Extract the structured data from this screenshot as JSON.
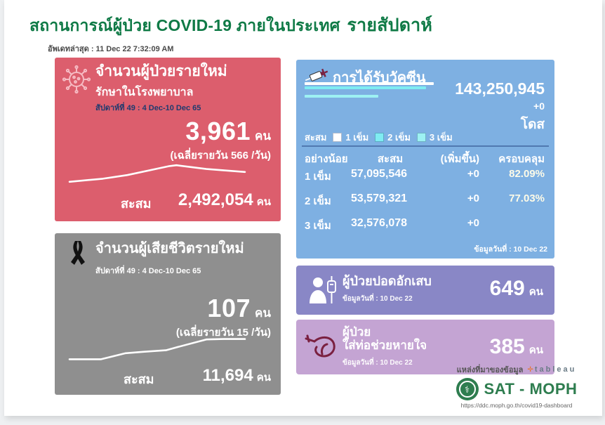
{
  "page": {
    "title": "สถานการณ์ผู้ป่วย COVID-19 ภายในประเทศ",
    "title_suffix": "รายสัปดาห์",
    "last_update": "อัพเดทล่าสุด : 11 Dec 22 7:32:09 AM"
  },
  "colors": {
    "title_green": "#0f7a46",
    "red_card": "#dc5e6d",
    "gray_card": "#8f8f8f",
    "blue_card": "#7eb0e2",
    "purple_card": "#8987c6",
    "violet_card": "#c4a4d3",
    "cyan_bar": "#7fecf2",
    "white_bar": "#ffffff",
    "navy_text": "#1f3a6e",
    "moph_green": "#2e7d4f"
  },
  "new_cases": {
    "title": "จำนวนผู้ป่วยรายใหม่",
    "subtitle": "รักษาในโรงพยาบาล",
    "week": "สัปดาห์ที่ 49 : 4 Dec-10 Dec 65",
    "value": "3,961",
    "unit": "คน",
    "daily_avg": "(เฉลี่ยรายวัน 566 /วัน)",
    "cumulative_label": "สะสม",
    "cumulative_value": "2,492,054",
    "cumulative_unit": "คน"
  },
  "new_deaths": {
    "title": "จำนวนผู้เสียชีวิตรายใหม่",
    "week": "สัปดาห์ที่  49 : 4 Dec-10 Dec 65",
    "value": "107",
    "unit": "คน",
    "daily_avg": "(เฉลี่ยรายวัน 15 /วัน)",
    "cumulative_label": "สะสม",
    "cumulative_value": "11,694",
    "cumulative_unit": "คน"
  },
  "vaccine": {
    "title": "การได้รับวัคซีน",
    "total": "143,250,945",
    "change": "+0",
    "unit": "โดส",
    "legend_label": "สะสม",
    "legend": [
      "1 เข็ม",
      "2 เข็ม",
      "3 เข็ม"
    ],
    "table": {
      "headers": [
        "อย่างน้อย",
        "สะสม",
        "(เพิ่มขึ้น)",
        "ครอบคลุม"
      ],
      "rows": [
        {
          "dose": "1 เข็ม",
          "cumulative": "57,095,546",
          "change": "+0",
          "coverage": "82.09%"
        },
        {
          "dose": "2 เข็ม",
          "cumulative": "53,579,321",
          "change": "+0",
          "coverage": "77.03%"
        },
        {
          "dose": "3 เข็ม",
          "cumulative": "32,576,078",
          "change": "+0",
          "coverage": ""
        }
      ]
    },
    "data_date": "ข้อมูลวันที่ : 10 Dec 22"
  },
  "pneumonia": {
    "title": "ผู้ป่วยปอดอักเสบ",
    "data_date": "ข้อมูลวันที่ : 10 Dec 22",
    "value": "649",
    "unit": "คน"
  },
  "intubated": {
    "title_line1": "ผู้ป่วย",
    "title_line2": "ใส่ท่อช่วยหายใจ",
    "data_date": "ข้อมูลวันที่ : 10 Dec 22",
    "value": "385",
    "unit": "คน"
  },
  "footer": {
    "source_label": "แหล่งที่มาของข้อมูล",
    "tableau_word": "tableau",
    "org_name": "SAT - MOPH",
    "url": "https://ddc.moph.go.th/covid19-dashboard"
  },
  "chart_data": [
    {
      "type": "line",
      "name": "new_cases_weekly_trend",
      "series_label": "จำนวนผู้ป่วยรายใหม่",
      "points_norm": [
        [
          0,
          0.13
        ],
        [
          0.19,
          0.27
        ],
        [
          0.33,
          0.43
        ],
        [
          0.57,
          0.83
        ],
        [
          0.61,
          0.87
        ],
        [
          0.78,
          0.7
        ],
        [
          1,
          0.57
        ]
      ],
      "note": "unlabeled white sparkline, shape estimated from pixels"
    },
    {
      "type": "line",
      "name": "new_deaths_weekly_trend",
      "series_label": "จำนวนผู้เสียชีวิตรายใหม่",
      "points_norm": [
        [
          0,
          0.05
        ],
        [
          0.18,
          0.05
        ],
        [
          0.32,
          0.32
        ],
        [
          0.42,
          0.38
        ],
        [
          0.55,
          0.45
        ],
        [
          0.62,
          0.6
        ],
        [
          0.78,
          0.93
        ],
        [
          0.88,
          0.95
        ],
        [
          1,
          0.95
        ]
      ],
      "note": "unlabeled white sparkline, shape estimated from pixels"
    },
    {
      "type": "bar",
      "name": "vaccine_doses_cumulative",
      "orientation": "horizontal",
      "categories": [
        "1 เข็ม",
        "2 เข็ม",
        "3 เข็ม"
      ],
      "values": [
        57095546,
        53579321,
        32576078
      ],
      "legend_position": "below"
    }
  ]
}
